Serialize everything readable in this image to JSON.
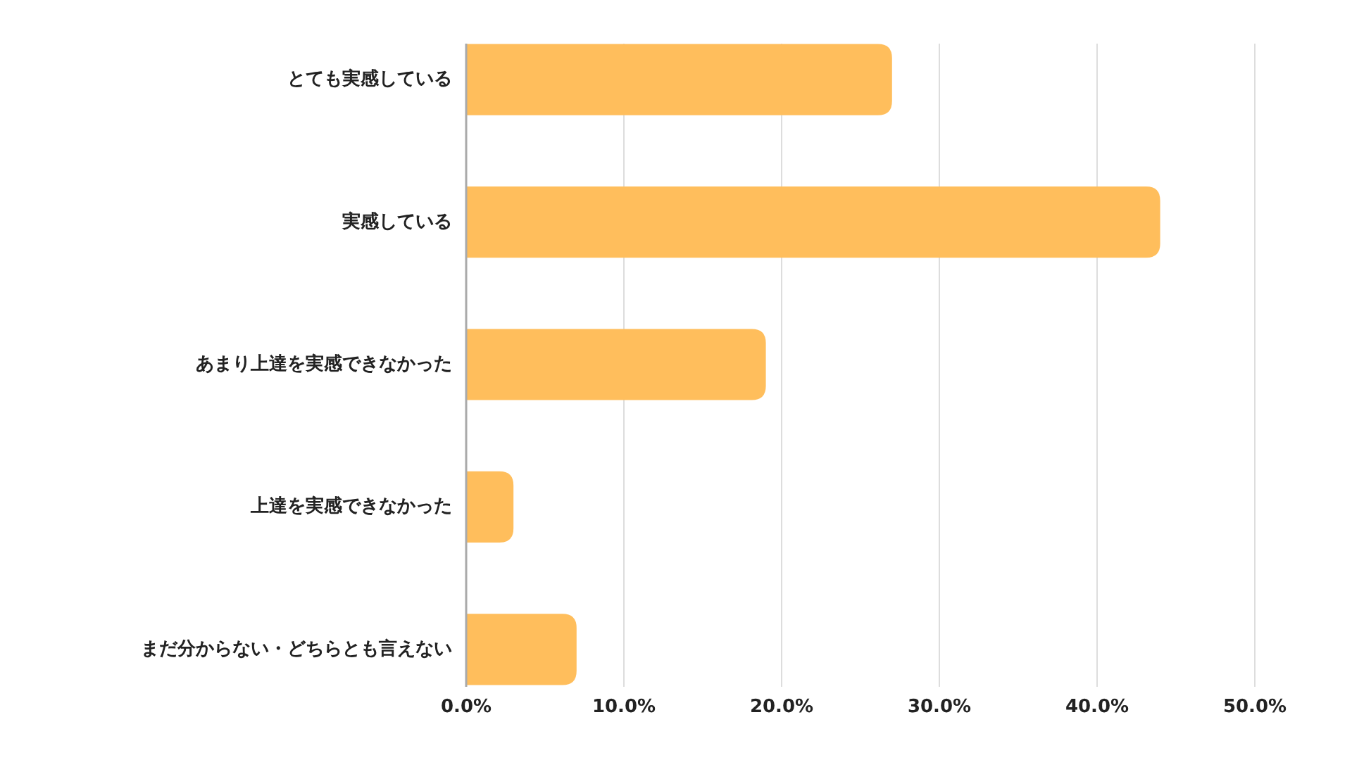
{
  "chart_data": {
    "type": "bar",
    "orientation": "horizontal",
    "categories": [
      "とても実感している",
      "実感している",
      "あまり上達を実感できなかった",
      "上達を実感できなかった",
      "まだ分からない・どちらとも言えない"
    ],
    "values": [
      27,
      44,
      19,
      3,
      7
    ],
    "color": "#ffbe5c",
    "xlim": [
      0,
      50
    ],
    "xticks": [
      {
        "value": 0,
        "label": "0.0%"
      },
      {
        "value": 10,
        "label": "10.0%"
      },
      {
        "value": 20,
        "label": "20.0%"
      },
      {
        "value": 30,
        "label": "30.0%"
      },
      {
        "value": 40,
        "label": "40.0%"
      },
      {
        "value": 50,
        "label": "50.0%"
      }
    ],
    "grid": "x"
  }
}
